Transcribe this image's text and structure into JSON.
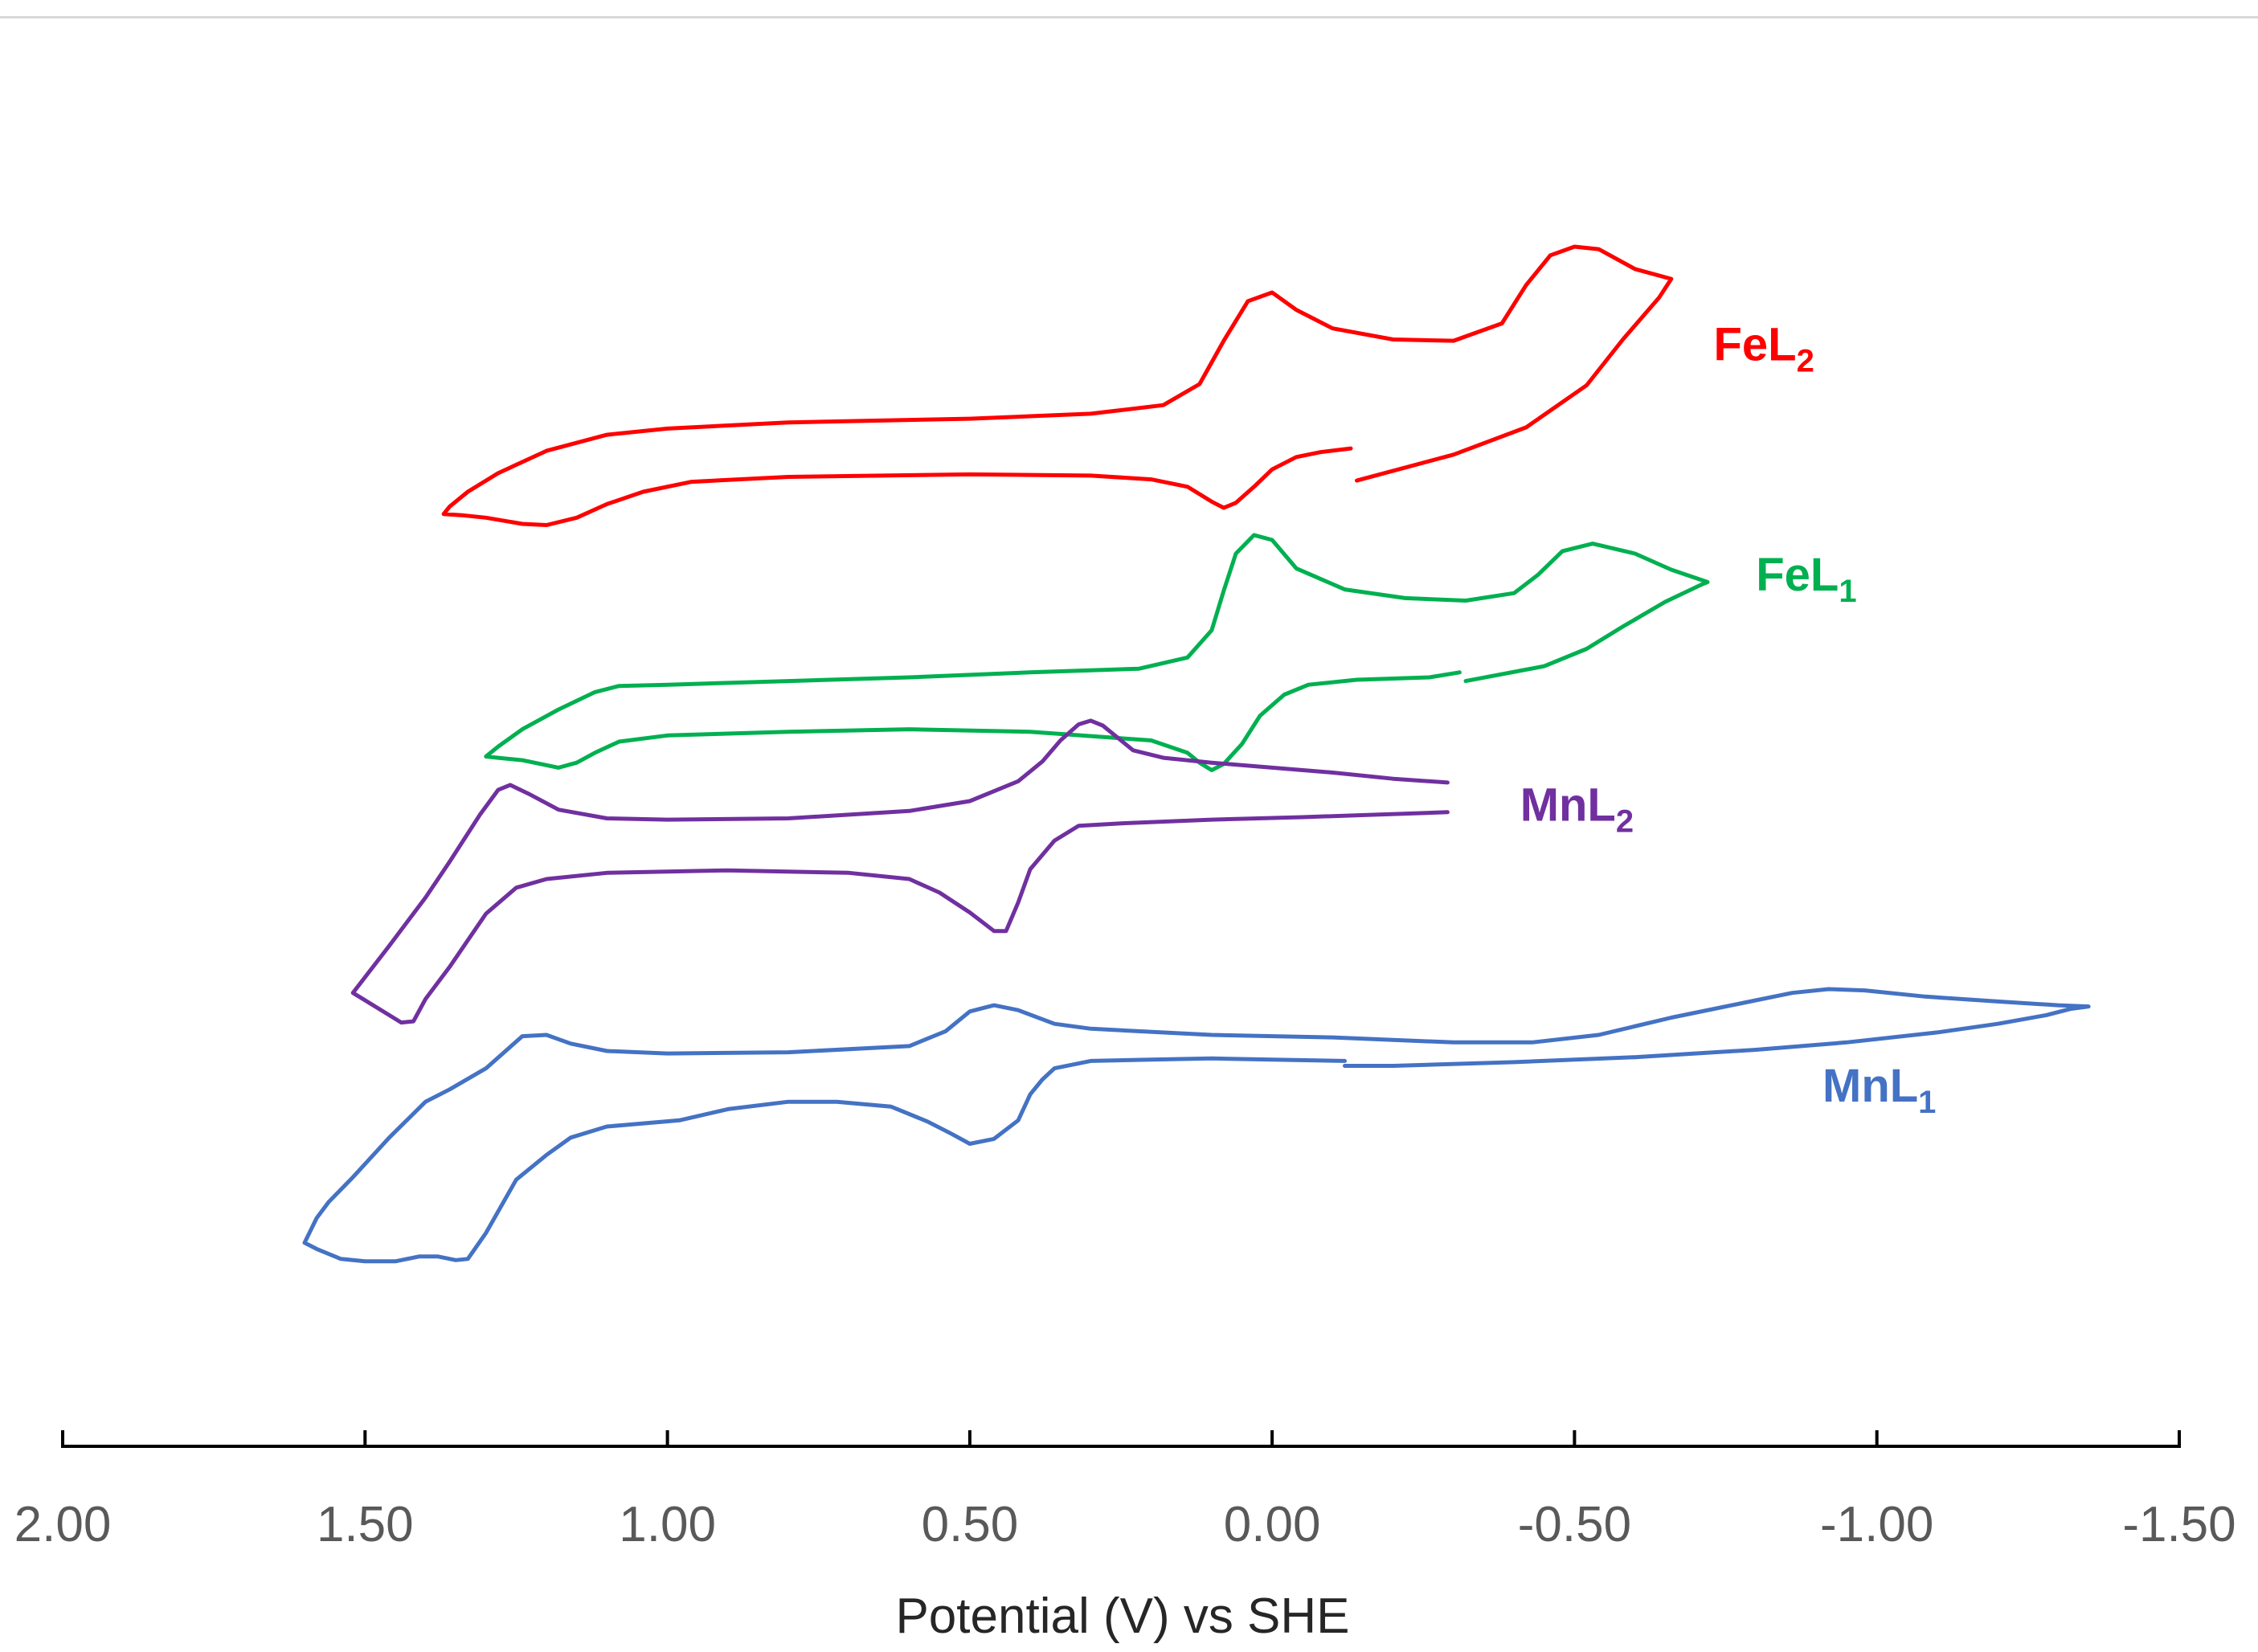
{
  "chart_data": {
    "type": "line",
    "title": "",
    "xlabel": "Potential (V) vs SHE",
    "ylabel": "",
    "xlim": [
      2.0,
      -1.5
    ],
    "x_reversed": true,
    "x_ticks": [
      "2.00",
      "1.50",
      "1.00",
      "0.50",
      "0.00",
      "-0.50",
      "-1.00",
      "-1.50"
    ],
    "x_tick_values": [
      2.0,
      1.5,
      1.0,
      0.5,
      0.0,
      -0.5,
      -1.0,
      -1.5
    ],
    "ylim": [
      0,
      100
    ],
    "y_units": "arbitrary (stacked, offset current)",
    "grid": false,
    "legend": "inline labels right of each curve",
    "series": [
      {
        "name": "FeL2",
        "label_main": "FeL",
        "label_sub": "2",
        "color": "#ff0000",
        "label_anchor": [
          -0.73,
          83.2
        ],
        "segments": [
          [
            [
              -0.14,
              73.5
            ],
            [
              -0.3,
              75.6
            ],
            [
              -0.42,
              77.8
            ],
            [
              -0.52,
              81.2
            ],
            [
              -0.58,
              84.9
            ],
            [
              -0.64,
              88.3
            ],
            [
              -0.66,
              89.8
            ],
            [
              -0.6,
              90.6
            ],
            [
              -0.54,
              92.2
            ],
            [
              -0.5,
              92.4
            ],
            [
              -0.46,
              91.7
            ],
            [
              -0.42,
              89.3
            ],
            [
              -0.38,
              86.2
            ],
            [
              -0.3,
              84.8
            ],
            [
              -0.2,
              84.9
            ],
            [
              -0.1,
              85.8
            ],
            [
              -0.04,
              87.3
            ],
            [
              0.0,
              88.7
            ],
            [
              0.04,
              88.0
            ],
            [
              0.08,
              84.8
            ],
            [
              0.12,
              81.3
            ],
            [
              0.18,
              79.6
            ],
            [
              0.3,
              78.9
            ],
            [
              0.5,
              78.5
            ],
            [
              0.8,
              78.2
            ],
            [
              1.0,
              77.7
            ],
            [
              1.1,
              77.2
            ],
            [
              1.2,
              75.9
            ],
            [
              1.28,
              74.1
            ],
            [
              1.33,
              72.6
            ],
            [
              1.36,
              71.4
            ],
            [
              1.37,
              70.8
            ],
            [
              1.34,
              70.7
            ],
            [
              1.3,
              70.5
            ],
            [
              1.24,
              70.0
            ],
            [
              1.2,
              69.9
            ],
            [
              1.15,
              70.5
            ],
            [
              1.1,
              71.6
            ],
            [
              1.04,
              72.6
            ],
            [
              0.96,
              73.4
            ],
            [
              0.8,
              73.8
            ],
            [
              0.5,
              74.0
            ],
            [
              0.3,
              73.9
            ],
            [
              0.2,
              73.6
            ],
            [
              0.14,
              73.0
            ],
            [
              0.1,
              71.8
            ],
            [
              0.08,
              71.3
            ],
            [
              0.06,
              71.7
            ],
            [
              0.03,
              73.0
            ],
            [
              0.0,
              74.4
            ],
            [
              -0.04,
              75.4
            ],
            [
              -0.08,
              75.8
            ],
            [
              -0.13,
              76.1
            ]
          ]
        ]
      },
      {
        "name": "FeL1",
        "label_main": "FeL",
        "label_sub": "1",
        "color": "#00b050",
        "label_anchor": [
          -0.8,
          64.6
        ],
        "segments": [
          [
            [
              -0.32,
              57.3
            ],
            [
              -0.45,
              58.5
            ],
            [
              -0.52,
              59.9
            ],
            [
              -0.58,
              61.7
            ],
            [
              -0.65,
              63.7
            ],
            [
              -0.71,
              65.1
            ],
            [
              -0.72,
              65.3
            ],
            [
              -0.66,
              66.3
            ],
            [
              -0.6,
              67.6
            ],
            [
              -0.53,
              68.4
            ],
            [
              -0.48,
              67.8
            ],
            [
              -0.44,
              65.9
            ],
            [
              -0.4,
              64.4
            ],
            [
              -0.32,
              63.8
            ],
            [
              -0.22,
              64.0
            ],
            [
              -0.12,
              64.7
            ],
            [
              -0.04,
              66.4
            ],
            [
              0.0,
              68.7
            ],
            [
              0.03,
              69.1
            ],
            [
              0.06,
              67.6
            ],
            [
              0.08,
              64.6
            ],
            [
              0.1,
              61.4
            ],
            [
              0.14,
              59.2
            ],
            [
              0.22,
              58.3
            ],
            [
              0.4,
              58.0
            ],
            [
              0.6,
              57.6
            ],
            [
              0.8,
              57.3
            ],
            [
              1.0,
              57.0
            ],
            [
              1.08,
              56.9
            ],
            [
              1.12,
              56.4
            ],
            [
              1.18,
              55.0
            ],
            [
              1.24,
              53.4
            ],
            [
              1.28,
              52.0
            ],
            [
              1.3,
              51.2
            ],
            [
              1.28,
              51.1
            ],
            [
              1.24,
              50.9
            ],
            [
              1.18,
              50.3
            ],
            [
              1.15,
              50.7
            ],
            [
              1.12,
              51.5
            ],
            [
              1.08,
              52.4
            ],
            [
              1.0,
              52.9
            ],
            [
              0.8,
              53.2
            ],
            [
              0.6,
              53.4
            ],
            [
              0.4,
              53.2
            ],
            [
              0.2,
              52.5
            ],
            [
              0.14,
              51.5
            ],
            [
              0.12,
              50.7
            ],
            [
              0.1,
              50.1
            ],
            [
              0.08,
              50.6
            ],
            [
              0.05,
              52.2
            ],
            [
              0.02,
              54.5
            ],
            [
              -0.02,
              56.2
            ],
            [
              -0.06,
              57.0
            ],
            [
              -0.14,
              57.4
            ],
            [
              -0.26,
              57.6
            ],
            [
              -0.31,
              58.0
            ]
          ]
        ]
      },
      {
        "name": "MnL2",
        "label_main": "MnL",
        "label_sub": "2",
        "color": "#7030a0",
        "label_anchor": [
          -0.41,
          46.0
        ],
        "segments": [
          [
            [
              -0.29,
              49.1
            ],
            [
              -0.2,
              49.4
            ],
            [
              -0.1,
              49.9
            ],
            [
              0.0,
              50.3
            ],
            [
              0.1,
              50.7
            ],
            [
              0.18,
              51.1
            ],
            [
              0.23,
              51.7
            ],
            [
              0.26,
              52.9
            ],
            [
              0.28,
              53.7
            ],
            [
              0.3,
              54.1
            ],
            [
              0.32,
              53.8
            ],
            [
              0.35,
              52.5
            ],
            [
              0.38,
              50.8
            ],
            [
              0.42,
              49.2
            ],
            [
              0.5,
              47.6
            ],
            [
              0.6,
              46.8
            ],
            [
              0.8,
              46.2
            ],
            [
              1.0,
              46.1
            ],
            [
              1.1,
              46.2
            ],
            [
              1.18,
              46.9
            ],
            [
              1.23,
              48.2
            ],
            [
              1.26,
              48.9
            ],
            [
              1.28,
              48.5
            ],
            [
              1.31,
              46.5
            ],
            [
              1.36,
              42.7
            ],
            [
              1.4,
              39.8
            ],
            [
              1.46,
              35.9
            ],
            [
              1.52,
              32.1
            ],
            [
              1.51,
              31.8
            ],
            [
              1.48,
              30.9
            ],
            [
              1.44,
              29.7
            ],
            [
              1.42,
              29.8
            ],
            [
              1.4,
              31.6
            ],
            [
              1.36,
              34.2
            ],
            [
              1.3,
              38.5
            ],
            [
              1.25,
              40.6
            ],
            [
              1.2,
              41.3
            ],
            [
              1.1,
              41.8
            ],
            [
              0.9,
              42.0
            ],
            [
              0.7,
              41.8
            ],
            [
              0.6,
              41.3
            ],
            [
              0.55,
              40.2
            ],
            [
              0.5,
              38.6
            ],
            [
              0.46,
              37.1
            ],
            [
              0.44,
              37.1
            ],
            [
              0.42,
              39.4
            ],
            [
              0.4,
              42.1
            ],
            [
              0.36,
              44.4
            ],
            [
              0.32,
              45.6
            ],
            [
              0.25,
              45.8
            ],
            [
              0.1,
              46.1
            ],
            [
              -0.05,
              46.3
            ],
            [
              -0.29,
              46.7
            ]
          ]
        ]
      },
      {
        "name": "MnL1",
        "label_main": "MnL",
        "label_sub": "1",
        "color": "#4472c4",
        "label_anchor": [
          -0.91,
          23.3
        ],
        "segments": [
          [
            [
              -0.12,
              26.6
            ],
            [
              0.0,
              26.7
            ],
            [
              0.1,
              26.8
            ],
            [
              0.2,
              26.7
            ],
            [
              0.3,
              26.6
            ],
            [
              0.36,
              26.0
            ],
            [
              0.38,
              25.1
            ],
            [
              0.4,
              23.9
            ],
            [
              0.42,
              21.8
            ],
            [
              0.46,
              20.3
            ],
            [
              0.5,
              19.9
            ],
            [
              0.53,
              20.7
            ],
            [
              0.57,
              21.7
            ],
            [
              0.63,
              22.9
            ],
            [
              0.72,
              23.3
            ],
            [
              0.8,
              23.3
            ],
            [
              0.9,
              22.7
            ],
            [
              0.98,
              21.8
            ],
            [
              1.1,
              21.3
            ],
            [
              1.16,
              20.4
            ],
            [
              1.2,
              19.0
            ],
            [
              1.25,
              17.0
            ],
            [
              1.3,
              12.7
            ],
            [
              1.33,
              10.6
            ],
            [
              1.35,
              10.5
            ],
            [
              1.38,
              10.8
            ],
            [
              1.41,
              10.8
            ],
            [
              1.45,
              10.4
            ],
            [
              1.5,
              10.4
            ],
            [
              1.54,
              10.6
            ],
            [
              1.58,
              11.4
            ],
            [
              1.6,
              11.9
            ],
            [
              1.58,
              13.9
            ],
            [
              1.56,
              15.2
            ],
            [
              1.52,
              17.2
            ],
            [
              1.46,
              20.4
            ],
            [
              1.4,
              23.3
            ],
            [
              1.36,
              24.3
            ],
            [
              1.3,
              26.0
            ],
            [
              1.24,
              28.6
            ],
            [
              1.2,
              28.7
            ],
            [
              1.16,
              28.0
            ],
            [
              1.1,
              27.4
            ],
            [
              1.0,
              27.2
            ],
            [
              0.8,
              27.3
            ],
            [
              0.6,
              27.8
            ],
            [
              0.54,
              29.0
            ],
            [
              0.5,
              30.6
            ],
            [
              0.46,
              31.1
            ],
            [
              0.42,
              30.7
            ],
            [
              0.36,
              29.6
            ],
            [
              0.3,
              29.2
            ],
            [
              0.1,
              28.7
            ],
            [
              -0.1,
              28.5
            ],
            [
              -0.3,
              28.1
            ],
            [
              -0.43,
              28.1
            ],
            [
              -0.54,
              28.7
            ],
            [
              -0.66,
              30.1
            ],
            [
              -0.78,
              31.3
            ],
            [
              -0.86,
              32.1
            ],
            [
              -0.92,
              32.4
            ],
            [
              -0.98,
              32.3
            ],
            [
              -1.08,
              31.8
            ],
            [
              -1.2,
              31.4
            ],
            [
              -1.3,
              31.1
            ],
            [
              -1.35,
              31.0
            ],
            [
              -1.32,
              30.8
            ],
            [
              -1.28,
              30.3
            ],
            [
              -1.2,
              29.6
            ],
            [
              -1.1,
              28.9
            ],
            [
              -0.95,
              28.1
            ],
            [
              -0.8,
              27.5
            ],
            [
              -0.6,
              26.9
            ],
            [
              -0.4,
              26.5
            ],
            [
              -0.2,
              26.2
            ],
            [
              -0.12,
              26.2
            ]
          ]
        ]
      }
    ]
  }
}
